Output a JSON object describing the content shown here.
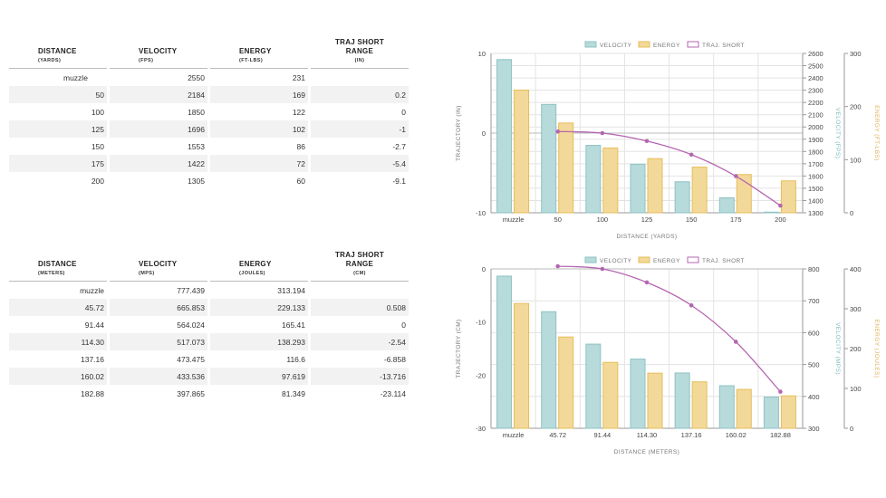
{
  "table_yards": {
    "headers": [
      {
        "title": "DISTANCE",
        "sub": "(YARDS)"
      },
      {
        "title": "VELOCITY",
        "sub": "(FPS)"
      },
      {
        "title": "ENERGY",
        "sub": "(FT-LBS)"
      },
      {
        "title": "TRAJ SHORT RANGE",
        "sub": "(IN)"
      }
    ],
    "rows": [
      [
        "muzzle",
        "2550",
        "231",
        ""
      ],
      [
        "50",
        "2184",
        "169",
        "0.2"
      ],
      [
        "100",
        "1850",
        "122",
        "0"
      ],
      [
        "125",
        "1696",
        "102",
        "-1"
      ],
      [
        "150",
        "1553",
        "86",
        "-2.7"
      ],
      [
        "175",
        "1422",
        "72",
        "-5.4"
      ],
      [
        "200",
        "1305",
        "60",
        "-9.1"
      ]
    ]
  },
  "table_meters": {
    "headers": [
      {
        "title": "DISTANCE",
        "sub": "(METERS)"
      },
      {
        "title": "VELOCITY",
        "sub": "(MPS)"
      },
      {
        "title": "ENERGY",
        "sub": "(JOULES)"
      },
      {
        "title": "TRAJ SHORT RANGE",
        "sub": "(CM)"
      }
    ],
    "rows": [
      [
        "muzzle",
        "777.439",
        "313.194",
        ""
      ],
      [
        "45.72",
        "665.853",
        "229.133",
        "0.508"
      ],
      [
        "91.44",
        "564.024",
        "165.41",
        "0"
      ],
      [
        "114.30",
        "517.073",
        "138.293",
        "-2.54"
      ],
      [
        "137.16",
        "473.475",
        "116.6",
        "-6.858"
      ],
      [
        "160.02",
        "433.536",
        "97.619",
        "-13.716"
      ],
      [
        "182.88",
        "397.865",
        "81.349",
        "-23.114"
      ]
    ]
  },
  "colors": {
    "velocity_fill": "#b7dadb",
    "velocity_stroke": "#8fc2c4",
    "energy_fill": "#f3d999",
    "energy_stroke": "#e6bd5c",
    "traj": "#b466b0",
    "grid": "#e3e3e3",
    "axis_text": "#666"
  },
  "chart_data": [
    {
      "type": "bar",
      "legend": [
        "VELOCITY",
        "ENERGY",
        "TRAJ. SHORT"
      ],
      "categories": [
        "muzzle",
        "50",
        "100",
        "125",
        "150",
        "175",
        "200"
      ],
      "xlabel": "DISTANCE (YARDS)",
      "series": [
        {
          "name": "VELOCITY",
          "axis": "VELOCITY (FPS)",
          "values": [
            2550,
            2184,
            1850,
            1696,
            1553,
            1422,
            1305
          ]
        },
        {
          "name": "ENERGY",
          "axis": "ENERGY (FT-LBS)",
          "values": [
            231,
            169,
            122,
            102,
            86,
            72,
            60
          ]
        },
        {
          "name": "TRAJ. SHORT",
          "type": "line",
          "axis": "TRAJECTORY (IN)",
          "values": [
            null,
            0.2,
            0,
            -1,
            -2.7,
            -5.4,
            -9.1
          ]
        }
      ],
      "axes": {
        "traj": {
          "label": "TRAJECTORY (IN)",
          "min": -10,
          "max": 10,
          "ticks": [
            -10,
            0,
            10
          ]
        },
        "vel": {
          "label": "VELOCITY (FPS)",
          "min": 1300,
          "max": 2600,
          "ticks": [
            1300,
            1400,
            1500,
            1600,
            1700,
            1800,
            1900,
            2000,
            2100,
            2200,
            2300,
            2400,
            2500,
            2600
          ]
        },
        "energy": {
          "label": "ENERGY (FT-LBS)",
          "min": 0,
          "max": 300,
          "ticks": [
            0,
            100,
            200,
            300
          ]
        }
      }
    },
    {
      "type": "bar",
      "legend": [
        "VELOCITY",
        "ENERGY",
        "TRAJ. SHORT"
      ],
      "categories": [
        "muzzle",
        "45.72",
        "91.44",
        "114.30",
        "137.16",
        "160.02",
        "182.88"
      ],
      "xlabel": "DISTANCE (METERS)",
      "series": [
        {
          "name": "VELOCITY",
          "axis": "VELOCITY (MPS)",
          "values": [
            777.439,
            665.853,
            564.024,
            517.073,
            473.475,
            433.536,
            397.865
          ]
        },
        {
          "name": "ENERGY",
          "axis": "ENERGY (JOULES)",
          "values": [
            313.194,
            229.133,
            165.41,
            138.293,
            116.6,
            97.619,
            81.349
          ]
        },
        {
          "name": "TRAJ. SHORT",
          "type": "line",
          "axis": "TRAJECTORY (CM)",
          "values": [
            null,
            0.508,
            0,
            -2.54,
            -6.858,
            -13.716,
            -23.114
          ]
        }
      ],
      "axes": {
        "traj": {
          "label": "TRAJECTORY (CM)",
          "min": -30,
          "max": 0,
          "ticks": [
            -30,
            -20,
            -10,
            0
          ]
        },
        "vel": {
          "label": "VELOCITY (MPS)",
          "min": 300,
          "max": 800,
          "ticks": [
            300,
            400,
            500,
            600,
            700,
            800
          ]
        },
        "energy": {
          "label": "ENERGY (JOULES)",
          "min": 0,
          "max": 400,
          "ticks": [
            0,
            100,
            200,
            300,
            400
          ]
        }
      }
    }
  ]
}
